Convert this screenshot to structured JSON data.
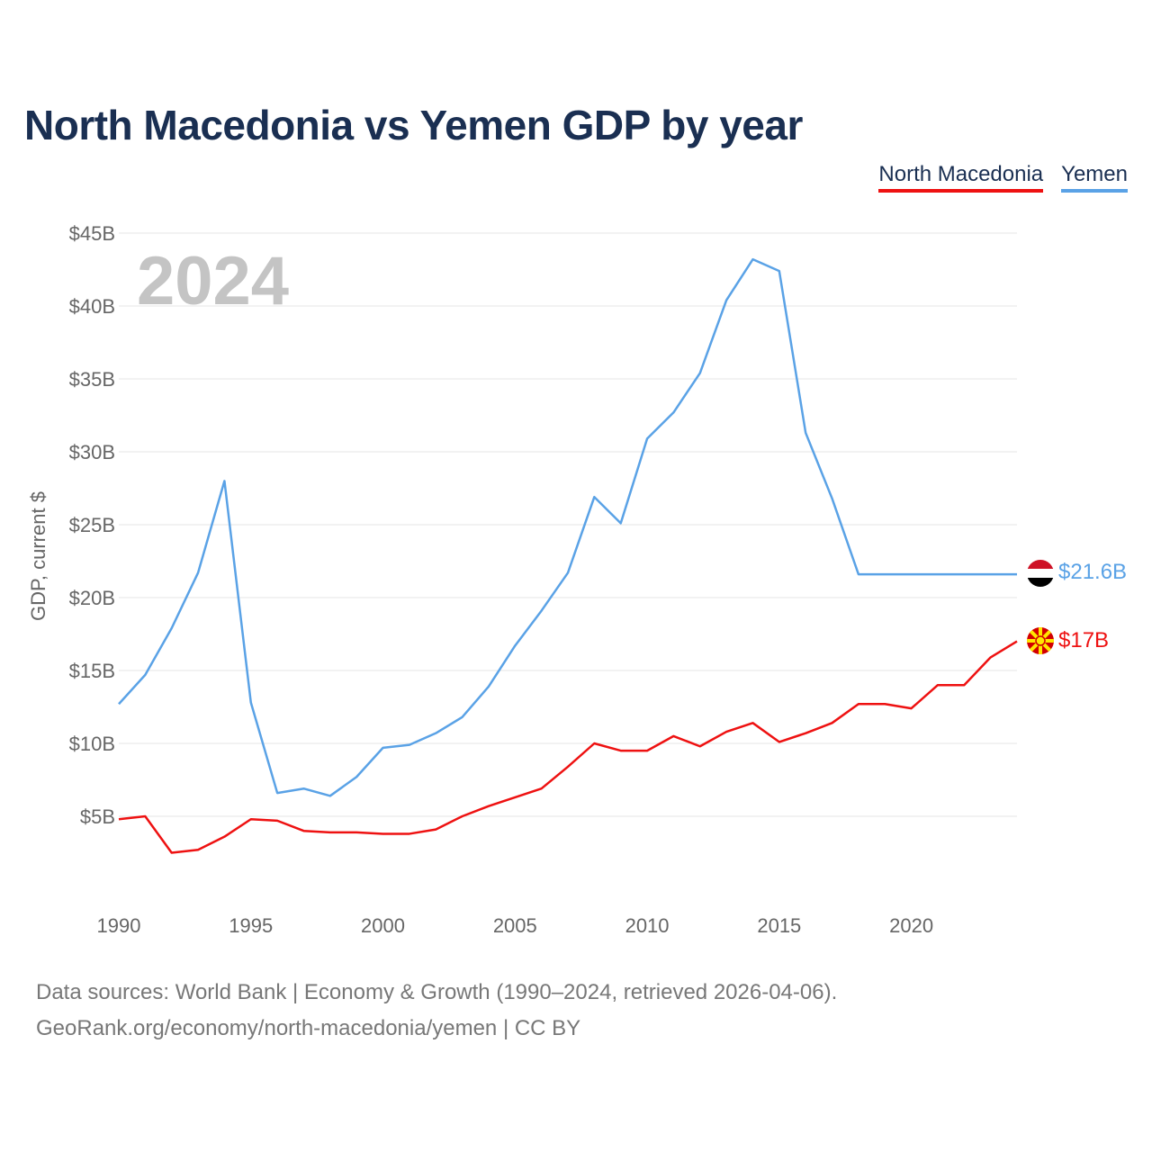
{
  "title": "North Macedonia vs Yemen GDP by year",
  "legend": [
    {
      "name": "North Macedonia",
      "color": "#ee1111"
    },
    {
      "name": "Yemen",
      "color": "#5aa2e6"
    }
  ],
  "year_watermark": "2024",
  "footer": {
    "line1": "Data sources: World Bank | Economy & Growth (1990–2024, retrieved 2026-04-06).",
    "line2": "GeoRank.org/economy/north-macedonia/yemen | CC BY"
  },
  "chart_data": {
    "type": "line",
    "title": "North Macedonia vs Yemen GDP by year",
    "xlabel": "",
    "ylabel": "GDP, current $",
    "x": [
      1990,
      1991,
      1992,
      1993,
      1994,
      1995,
      1996,
      1997,
      1998,
      1999,
      2000,
      2001,
      2002,
      2003,
      2004,
      2005,
      2006,
      2007,
      2008,
      2009,
      2010,
      2011,
      2012,
      2013,
      2014,
      2015,
      2016,
      2017,
      2018,
      2019,
      2020,
      2021,
      2022,
      2023,
      2024
    ],
    "xlim": [
      1990,
      2024
    ],
    "ylim": [
      0,
      45
    ],
    "x_ticks": [
      "1990",
      "1995",
      "2000",
      "2005",
      "2010",
      "2015",
      "2020"
    ],
    "x_tick_values": [
      1990,
      1995,
      2000,
      2005,
      2010,
      2015,
      2020
    ],
    "y_ticks": [
      "$5B",
      "$10B",
      "$15B",
      "$20B",
      "$25B",
      "$30B",
      "$35B",
      "$40B",
      "$45B"
    ],
    "y_tick_values": [
      5,
      10,
      15,
      20,
      25,
      30,
      35,
      40,
      45
    ],
    "grid": true,
    "legend_position": "top-right",
    "series": [
      {
        "name": "North Macedonia",
        "color": "#ee1111",
        "end_label": "$17B",
        "values": [
          4.8,
          5.0,
          2.5,
          2.7,
          3.6,
          4.8,
          4.7,
          4.0,
          3.9,
          3.9,
          3.8,
          3.8,
          4.1,
          5.0,
          5.7,
          6.3,
          6.9,
          8.4,
          10.0,
          9.5,
          9.5,
          10.5,
          9.8,
          10.8,
          11.4,
          10.1,
          10.7,
          11.4,
          12.7,
          12.7,
          12.4,
          14.0,
          14.0,
          15.9,
          17.0
        ]
      },
      {
        "name": "Yemen",
        "color": "#5aa2e6",
        "end_label": "$21.6B",
        "values": [
          12.7,
          14.7,
          17.9,
          21.7,
          28.0,
          12.8,
          6.6,
          6.9,
          6.4,
          7.7,
          9.7,
          9.9,
          10.7,
          11.8,
          13.9,
          16.7,
          19.1,
          21.7,
          26.9,
          25.1,
          30.9,
          32.7,
          35.4,
          40.4,
          43.2,
          42.4,
          31.3,
          26.8,
          21.6,
          21.6,
          21.6,
          21.6,
          21.6,
          21.6,
          21.6
        ]
      }
    ]
  }
}
